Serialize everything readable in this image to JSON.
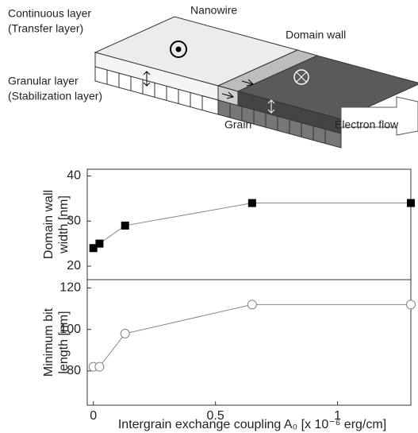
{
  "diagram": {
    "labels": {
      "continuous": "Continuous layer",
      "transfer": "(Transfer layer)",
      "nanowire": "Nanowire",
      "domain_wall": "Domain wall",
      "granular": "Granular layer",
      "stabilization": "(Stabilization layer)",
      "grain": "Grain",
      "electron_flow": "Electron flow"
    }
  },
  "chart_data": [
    {
      "type": "line",
      "x": [
        0,
        0.025,
        0.13,
        0.65,
        1.3
      ],
      "series": [
        {
          "values": [
            24,
            25,
            29,
            34,
            34
          ],
          "color": "#000000",
          "marker": "filled-square"
        }
      ],
      "ylabel": [
        "Domain wall",
        "width [nm]"
      ],
      "xlim": [
        -0.025,
        1.3
      ],
      "ylim": [
        17,
        41.5
      ],
      "yticks": [
        20,
        30,
        40
      ]
    },
    {
      "type": "line",
      "x": [
        0,
        0.025,
        0.13,
        0.65,
        1.3
      ],
      "series": [
        {
          "values": [
            82,
            82,
            98,
            112,
            112
          ],
          "color": "#808080",
          "marker": "open-circle"
        }
      ],
      "ylabel": [
        "Minimum bit",
        "length [nm]"
      ],
      "xlabel": "Intergrain exchange coupling A₀ [x 10⁻⁶ erg/cm]",
      "xlim": [
        -0.025,
        1.3
      ],
      "xticks": [
        0,
        0.5,
        1
      ],
      "ylim": [
        63.5,
        124
      ],
      "yticks": [
        80,
        100,
        120
      ]
    }
  ]
}
